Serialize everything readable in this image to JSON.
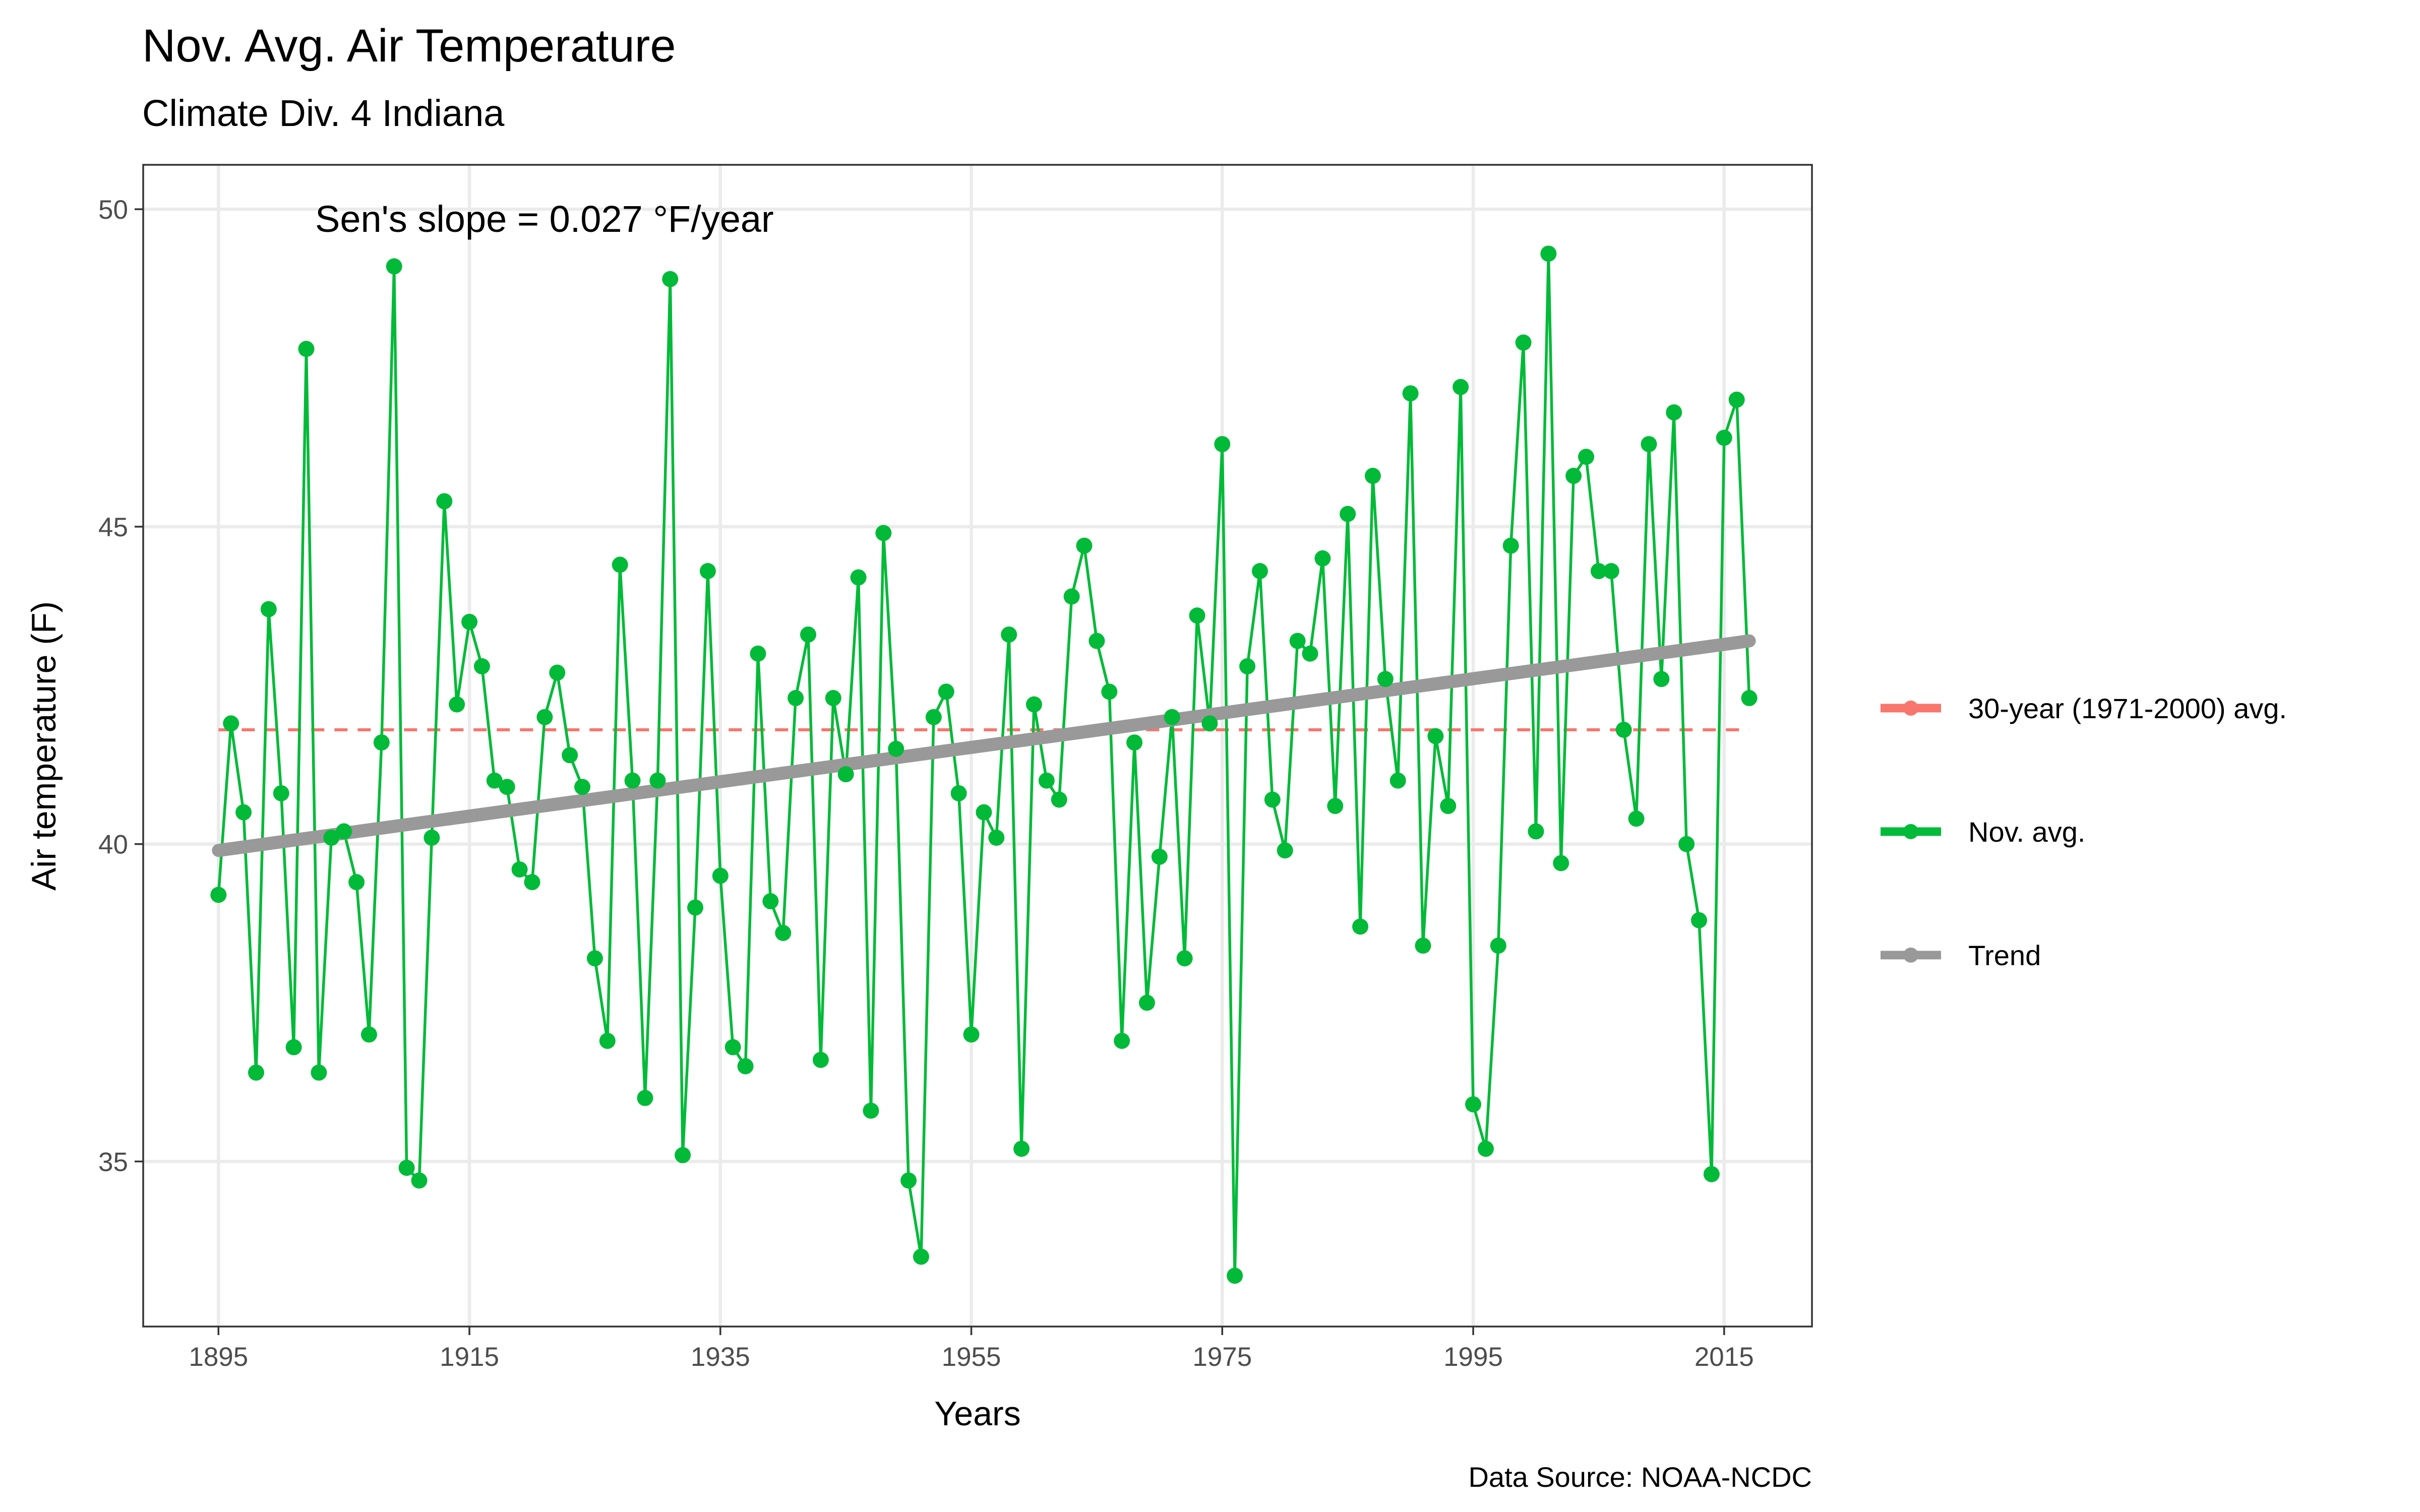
{
  "chart_data": {
    "type": "line",
    "title": "Nov. Avg. Air Temperature",
    "subtitle": "Climate Div. 4 Indiana",
    "xlabel": "Years",
    "ylabel": "Air temperature (F)",
    "annotation": "Sen's slope = 0.027 °F/year",
    "caption": "Data Source: NOAA-NCDC",
    "xlim": [
      1889,
      2022
    ],
    "ylim": [
      32.4,
      50.7
    ],
    "x_ticks": [
      1895,
      1915,
      1935,
      1955,
      1975,
      1995,
      2015
    ],
    "y_ticks": [
      35,
      40,
      45,
      50
    ],
    "grid": true,
    "legend_position": "right",
    "colors": {
      "average": "#f8766d",
      "series": "#00ba38",
      "trend": "#999999"
    },
    "legend": [
      {
        "key": "average",
        "label": "30-year (1971-2000) avg."
      },
      {
        "key": "series",
        "label": "Nov. avg."
      },
      {
        "key": "trend",
        "label": "Trend"
      }
    ],
    "average_line": {
      "value": 41.8,
      "x": [
        1895,
        2017
      ]
    },
    "trend_line": {
      "x": [
        1895,
        2017
      ],
      "y": [
        39.9,
        43.2
      ]
    },
    "series": [
      {
        "name": "Nov. avg.",
        "x": [
          1895,
          1896,
          1897,
          1898,
          1899,
          1900,
          1901,
          1902,
          1903,
          1904,
          1905,
          1906,
          1907,
          1908,
          1909,
          1910,
          1911,
          1912,
          1913,
          1914,
          1915,
          1916,
          1917,
          1918,
          1919,
          1920,
          1921,
          1922,
          1923,
          1924,
          1925,
          1926,
          1927,
          1928,
          1929,
          1930,
          1931,
          1932,
          1933,
          1934,
          1935,
          1936,
          1937,
          1938,
          1939,
          1940,
          1941,
          1942,
          1943,
          1944,
          1945,
          1946,
          1947,
          1948,
          1949,
          1950,
          1951,
          1952,
          1953,
          1954,
          1955,
          1956,
          1957,
          1958,
          1959,
          1960,
          1961,
          1962,
          1963,
          1964,
          1965,
          1966,
          1967,
          1968,
          1969,
          1970,
          1971,
          1972,
          1973,
          1974,
          1975,
          1976,
          1977,
          1978,
          1979,
          1980,
          1981,
          1982,
          1983,
          1984,
          1985,
          1986,
          1987,
          1988,
          1989,
          1990,
          1991,
          1992,
          1993,
          1994,
          1995,
          1996,
          1997,
          1998,
          1999,
          2000,
          2001,
          2002,
          2003,
          2004,
          2005,
          2006,
          2007,
          2008,
          2009,
          2010,
          2011,
          2012,
          2013,
          2014,
          2015,
          2016,
          2017
        ],
        "values": [
          39.2,
          41.9,
          40.5,
          36.4,
          43.7,
          40.8,
          36.8,
          47.8,
          36.4,
          40.1,
          40.2,
          39.4,
          37.0,
          41.6,
          49.1,
          34.9,
          34.7,
          40.1,
          45.4,
          42.2,
          43.5,
          42.8,
          41.0,
          40.9,
          39.6,
          39.4,
          42.0,
          42.7,
          41.4,
          40.9,
          38.2,
          36.9,
          44.4,
          41.0,
          36.0,
          41.0,
          48.9,
          35.1,
          39.0,
          44.3,
          39.5,
          36.8,
          36.5,
          43.0,
          39.1,
          38.6,
          42.3,
          43.3,
          36.6,
          42.3,
          41.1,
          44.2,
          35.8,
          44.9,
          41.5,
          34.7,
          33.5,
          42.0,
          42.4,
          40.8,
          37.0,
          40.5,
          40.1,
          43.3,
          35.2,
          42.2,
          41.0,
          40.7,
          43.9,
          44.7,
          43.2,
          42.4,
          36.9,
          41.6,
          37.5,
          39.8,
          42.0,
          38.2,
          43.6,
          41.9,
          46.3,
          33.2,
          42.8,
          44.3,
          40.7,
          39.9,
          43.2,
          43.0,
          44.5,
          40.6,
          45.2,
          38.7,
          45.8,
          42.6,
          41.0,
          47.1,
          38.4,
          41.7,
          40.6,
          47.2,
          35.9,
          35.2,
          38.4,
          44.7,
          47.9,
          40.2,
          49.3,
          39.7,
          45.8,
          46.1,
          44.3,
          44.3,
          41.8,
          40.4,
          46.3,
          42.6,
          46.8,
          40.0,
          38.8,
          34.8,
          46.4,
          47.0,
          42.3
        ]
      }
    ]
  }
}
